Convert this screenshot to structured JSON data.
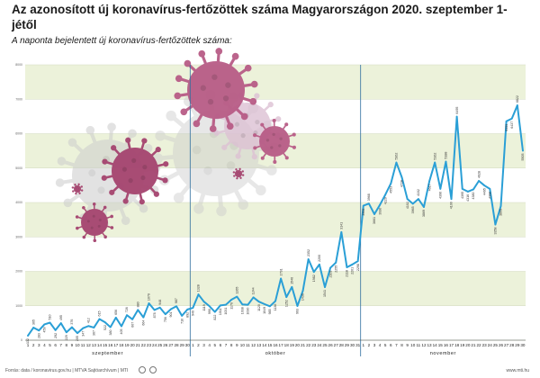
{
  "header": {
    "title": "Az azonosított új koronavírus-fertőzöttek száma Magyarországon 2020. szeptember 1-jétől",
    "subtitle": "A naponta bejelentett új koronavírus-fertőzöttek száma:"
  },
  "footer": {
    "source": "Forrás: data / koronavirus.gov.hu | MTVA Sajtóarchívum | MTI",
    "website": "www.mti.hu"
  },
  "colors": {
    "line": "#2a9fd6",
    "band": "#ecf2da",
    "gridline": "#d2d9c0",
    "month_divider": "#2f6f9f",
    "virus_dark": "#a5446f",
    "virus_mid": "#b85c86",
    "virus_light": "#ddc1d4",
    "virus_grey": "#cccccc"
  },
  "chart_data": {
    "type": "line",
    "title": "",
    "xlabel": "",
    "ylabel": "",
    "ylim": [
      0,
      8000
    ],
    "yticks": [
      0,
      1000,
      2000,
      3000,
      4000,
      5000,
      6000,
      7000,
      8000
    ],
    "grid": true,
    "months": [
      {
        "name": "szeptember",
        "days": 30
      },
      {
        "name": "október",
        "days": 31
      },
      {
        "name": "november",
        "days": 30
      }
    ],
    "series": [
      {
        "values": [
          132,
          365,
          283,
          459,
          510,
          292,
          495,
          229,
          376,
          205,
          347,
          412,
          367,
          615,
          522,
          380,
          656,
          405,
          726,
          607,
          880,
          664,
          1070,
          878,
          948,
          756,
          901,
          987,
          710,
          892,
          940,
          1328,
          1119,
          990,
          822,
          1011,
          1031,
          1176,
          1265,
          1038,
          1030,
          1244,
          1120,
          1049,
          985,
          1136,
          1791,
          1252,
          1546,
          993,
          1436,
          2352,
          1982,
          2200,
          1541,
          2103,
          2255,
          3141,
          2118,
          2201,
          2298,
          3906,
          3968,
          3661,
          3930,
          4229,
          4553,
          5162,
          4728,
          4102,
          3965,
          4102,
          3869,
          4617,
          5162,
          4396,
          5188,
          4100,
          6495,
          4395,
          4316,
          4380,
          4628,
          4495,
          4396,
          3358,
          3899,
          6359,
          6437,
          6822,
          5505
        ]
      }
    ],
    "data_labels": [
      "132",
      "365",
      "283",
      "459",
      "510",
      "292",
      "495",
      "229",
      "376",
      "205",
      "347",
      "412",
      "367",
      "615",
      "522",
      "380",
      "656",
      "405",
      "726",
      "607",
      "880",
      "664",
      "1070",
      "878",
      "948",
      "756",
      "901",
      "987",
      "710",
      "892",
      "940",
      "1328",
      "1119",
      "990",
      "822",
      "1011",
      "1031",
      "1176",
      "1265",
      "1038",
      "1030",
      "1244",
      "1120",
      "1049",
      "985",
      "1136",
      "1791",
      "1252",
      "1546",
      "993",
      "1436",
      "2352",
      "1982",
      "2200",
      "1541",
      "2103",
      "2255",
      "3141",
      "2118",
      "2201",
      "2298",
      "3906",
      "3968",
      "3661",
      "3930",
      "4229",
      "4553",
      "5162",
      "4728",
      "4102",
      "3965",
      "4102",
      "3869",
      "4617",
      "5162",
      "4396",
      "5188",
      "4100",
      "6495",
      "4395",
      "4316",
      "4380",
      "4628",
      "4495",
      "4396",
      "3358",
      "3899",
      "6359",
      "6437",
      "6822",
      "5505"
    ]
  }
}
